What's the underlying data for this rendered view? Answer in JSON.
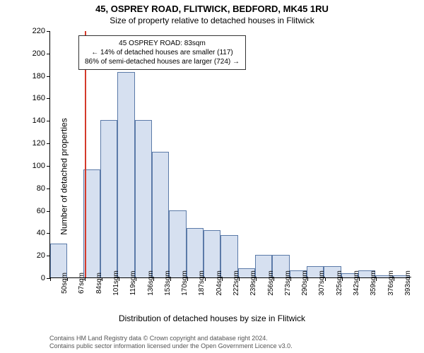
{
  "chart": {
    "type": "histogram",
    "title_line1": "45, OSPREY ROAD, FLITWICK, BEDFORD, MK45 1RU",
    "title_line2": "Size of property relative to detached houses in Flitwick",
    "ylabel": "Number of detached properties",
    "xlabel": "Distribution of detached houses by size in Flitwick",
    "ylim_max": 220,
    "ytick_step": 20,
    "yticks": [
      0,
      20,
      40,
      60,
      80,
      100,
      120,
      140,
      160,
      180,
      200,
      220
    ],
    "bar_fill": "#d6e0f0",
    "bar_border": "#5b7aa8",
    "refline_color": "#d43a2a",
    "background": "#ffffff",
    "xtick_labels": [
      "50sqm",
      "67sqm",
      "84sqm",
      "101sqm",
      "119sqm",
      "136sqm",
      "153sqm",
      "170sqm",
      "187sqm",
      "204sqm",
      "222sqm",
      "239sqm",
      "256sqm",
      "273sqm",
      "290sqm",
      "307sqm",
      "325sqm",
      "342sqm",
      "359sqm",
      "376sqm",
      "393sqm"
    ],
    "bar_values": [
      30,
      0,
      96,
      140,
      183,
      140,
      112,
      60,
      44,
      42,
      38,
      8,
      20,
      20,
      6,
      10,
      10,
      4,
      6,
      2,
      2
    ],
    "reference_bin_index": 2,
    "annotation": {
      "line1": "45 OSPREY ROAD: 83sqm",
      "line2": "← 14% of detached houses are smaller (117)",
      "line3": "86% of semi-detached houses are larger (724) →"
    },
    "footer_line1": "Contains HM Land Registry data © Crown copyright and database right 2024.",
    "footer_line2": "Contains public sector information licensed under the Open Government Licence v3.0."
  }
}
